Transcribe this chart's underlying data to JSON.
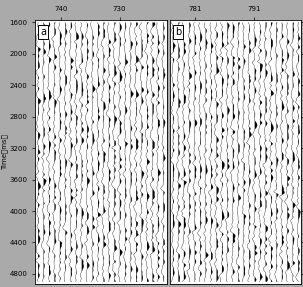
{
  "panel_a": {
    "label": "a",
    "xtick_labels": [
      "740",
      "730"
    ]
  },
  "panel_b": {
    "label": "b",
    "xtick_labels": [
      "781",
      "791"
    ]
  },
  "yticks": [
    1600,
    2000,
    2400,
    2800,
    3200,
    3600,
    4000,
    4400,
    4800
  ],
  "time_min": 1600,
  "time_max": 4900,
  "n_traces": 24,
  "n_samples": 600,
  "seed_a": 42,
  "seed_b": 99,
  "background_color": "#ffffff",
  "trace_color": "#000000",
  "fill_color": "#000000",
  "fig_bg": "#aaaaaa",
  "label_fontsize": 7,
  "tick_fontsize": 5,
  "ylabel_fontsize": 5
}
